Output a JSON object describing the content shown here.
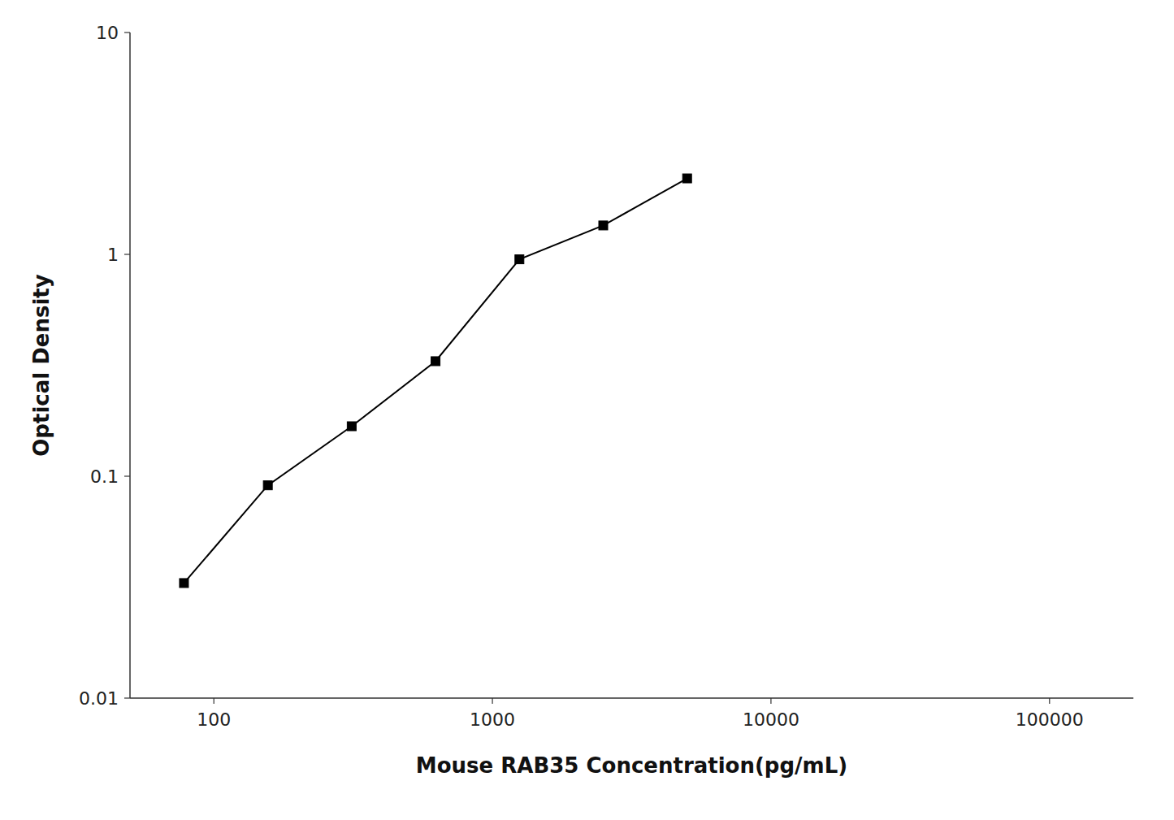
{
  "chart_data": {
    "type": "line",
    "xlabel": "Mouse RAB35 Concentration(pg/mL)",
    "ylabel": "Optical Density",
    "x": [
      78.125,
      156.25,
      312.5,
      625,
      1250,
      2500,
      5000
    ],
    "values": [
      0.033,
      0.091,
      0.168,
      0.33,
      0.95,
      1.35,
      2.2
    ],
    "xlim": [
      50,
      200000
    ],
    "ylim": [
      0.01,
      10
    ],
    "xticks": [
      100,
      1000,
      10000,
      100000
    ],
    "yticks": [
      0.01,
      0.1,
      1,
      10
    ],
    "log": true,
    "grid": false,
    "color": "#000000",
    "marker": "square"
  }
}
